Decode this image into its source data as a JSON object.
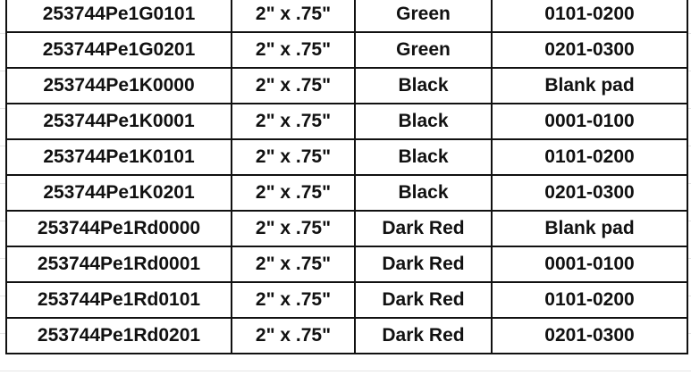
{
  "rows": [
    [
      "253744Pe1G0101",
      "2\" x .75\"",
      "Green",
      "0101-0200"
    ],
    [
      "253744Pe1G0201",
      "2\" x .75\"",
      "Green",
      "0201-0300"
    ],
    [
      "253744Pe1K0000",
      "2\" x .75\"",
      "Black",
      "Blank pad"
    ],
    [
      "253744Pe1K0001",
      "2\" x .75\"",
      "Black",
      "0001-0100"
    ],
    [
      "253744Pe1K0101",
      "2\" x .75\"",
      "Black",
      "0101-0200"
    ],
    [
      "253744Pe1K0201",
      "2\" x .75\"",
      "Black",
      "0201-0300"
    ],
    [
      "253744Pe1Rd0000",
      "2\" x .75\"",
      "Dark Red",
      "Blank pad"
    ],
    [
      "253744Pe1Rd0001",
      "2\" x .75\"",
      "Dark Red",
      "0001-0100"
    ],
    [
      "253744Pe1Rd0101",
      "2\" x .75\"",
      "Dark Red",
      "0101-0200"
    ],
    [
      "253744Pe1Rd0201",
      "2\" x .75\"",
      "Dark Red",
      "0201-0300"
    ]
  ]
}
